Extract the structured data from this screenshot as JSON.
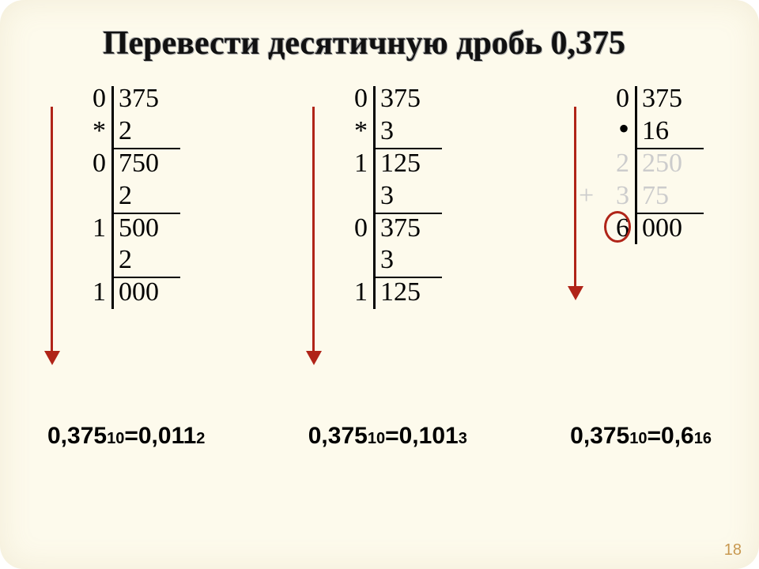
{
  "background_color": "#fdfaec",
  "title_color": "#111111",
  "title": "Перевести десятичную дробь 0,375",
  "arrow_color": "#b02418",
  "frac_sep_color": "#000000",
  "circle_color": "#b02418",
  "greyed_color": "#cccccc",
  "plus_color": "#cccccc",
  "pagenum_color": "#c89850",
  "calc1": {
    "rows": [
      {
        "int": "0",
        "frac": "375",
        "first": true
      },
      {
        "int": "*",
        "frac": "2"
      },
      {
        "int": "0",
        "frac": "750",
        "top": true
      },
      {
        "int": "",
        "frac": "2"
      },
      {
        "int": "1",
        "frac": "500",
        "top": true
      },
      {
        "int": "",
        "frac": "2"
      },
      {
        "int": "1",
        "frac": "000",
        "top": true
      }
    ]
  },
  "calc2": {
    "rows": [
      {
        "int": "0",
        "frac": "375",
        "first": true
      },
      {
        "int": "*",
        "frac": "3"
      },
      {
        "int": "1",
        "frac": "125",
        "top": true
      },
      {
        "int": "",
        "frac": "3"
      },
      {
        "int": "0",
        "frac": "375",
        "top": true
      },
      {
        "int": "",
        "frac": "3"
      },
      {
        "int": "1",
        "frac": "125",
        "top": true
      }
    ]
  },
  "calc3": {
    "rows": [
      {
        "int": "0",
        "frac": "375",
        "first": true
      },
      {
        "int": "",
        "frac": "16",
        "bigdot": true
      },
      {
        "int": "2",
        "frac": "250",
        "top": true,
        "grey": true
      },
      {
        "int": "3",
        "frac": "75",
        "grey": true,
        "plus": true
      },
      {
        "int": "6",
        "frac": "000",
        "top": true,
        "circle": true
      }
    ]
  },
  "results": [
    {
      "lhs_num": "0,375",
      "lhs_base": "10",
      "rhs_num": "0,011",
      "rhs_base": "2"
    },
    {
      "lhs_num": "0,375",
      "lhs_base": "10",
      "rhs_num": "0,101",
      "rhs_base": "3"
    },
    {
      "lhs_num": "0,375",
      "lhs_base": "10",
      "rhs_num": "0,6",
      "rhs_base": "16"
    }
  ],
  "pagenum": "18"
}
